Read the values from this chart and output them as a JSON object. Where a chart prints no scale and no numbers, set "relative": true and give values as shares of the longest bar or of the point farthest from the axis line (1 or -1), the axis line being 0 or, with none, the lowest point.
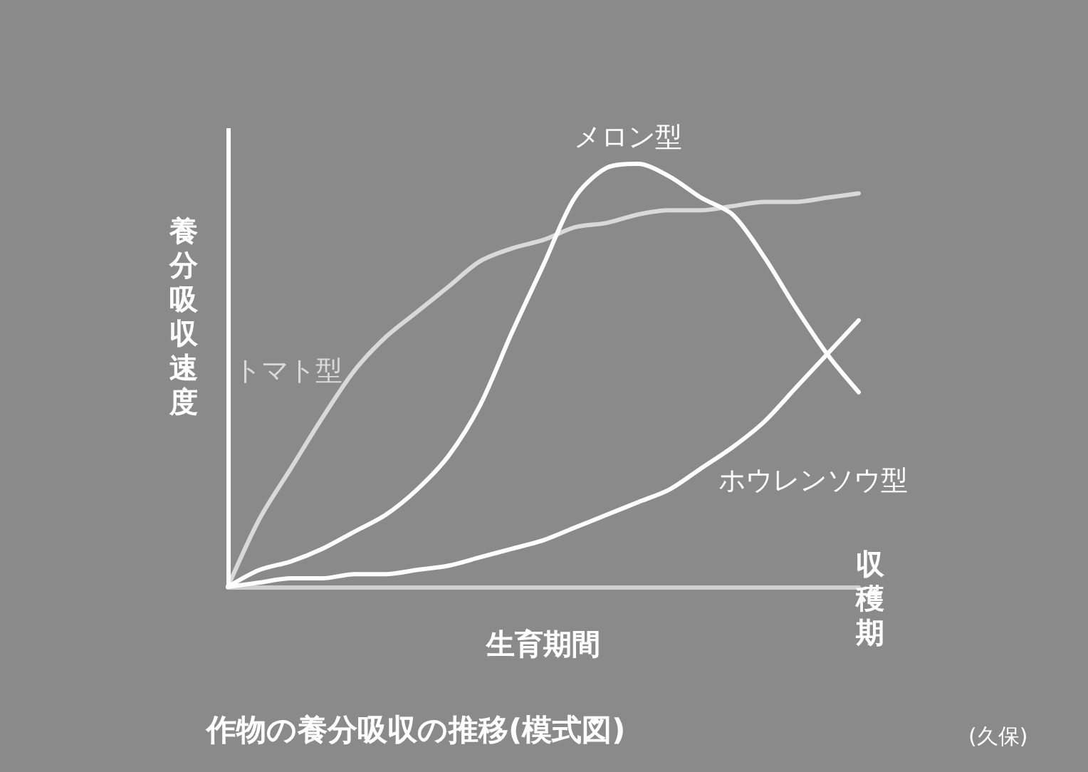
{
  "chart_data": {
    "type": "line",
    "relative": true,
    "title": "作物の養分吸収の推移(模式図)",
    "xlabel": "生育期間",
    "ylabel": "養分吸収速度",
    "annotations": [
      "収穫期",
      "(久保)"
    ],
    "categories": [
      null,
      null,
      null,
      null,
      null,
      null,
      null,
      null,
      null,
      null,
      null,
      null,
      null,
      null,
      null,
      null,
      null,
      null,
      null,
      null,
      null
    ],
    "series": [
      {
        "name": "トマト型",
        "color": "#d9d9d9",
        "values": [
          0,
          0.16,
          0.28,
          0.4,
          0.51,
          0.59,
          0.65,
          0.71,
          0.77,
          0.8,
          0.82,
          0.85,
          0.86,
          0.88,
          0.89,
          0.89,
          0.9,
          0.91,
          0.91,
          0.92,
          0.93
        ]
      },
      {
        "name": "メロン型",
        "color": "#ffffff",
        "values": [
          0,
          0.04,
          0.06,
          0.09,
          0.13,
          0.17,
          0.23,
          0.31,
          0.43,
          0.6,
          0.76,
          0.92,
          0.99,
          1.0,
          0.97,
          0.92,
          0.88,
          0.78,
          0.66,
          0.55,
          0.46
        ]
      },
      {
        "name": "ホウレンソウ型",
        "color": "#ffffff",
        "values": [
          0,
          0.01,
          0.02,
          0.02,
          0.03,
          0.03,
          0.04,
          0.05,
          0.07,
          0.09,
          0.11,
          0.14,
          0.17,
          0.2,
          0.23,
          0.28,
          0.33,
          0.39,
          0.47,
          0.55,
          0.63
        ]
      }
    ],
    "grid": false,
    "legend": false,
    "marker": "none",
    "line_style": "solid"
  }
}
